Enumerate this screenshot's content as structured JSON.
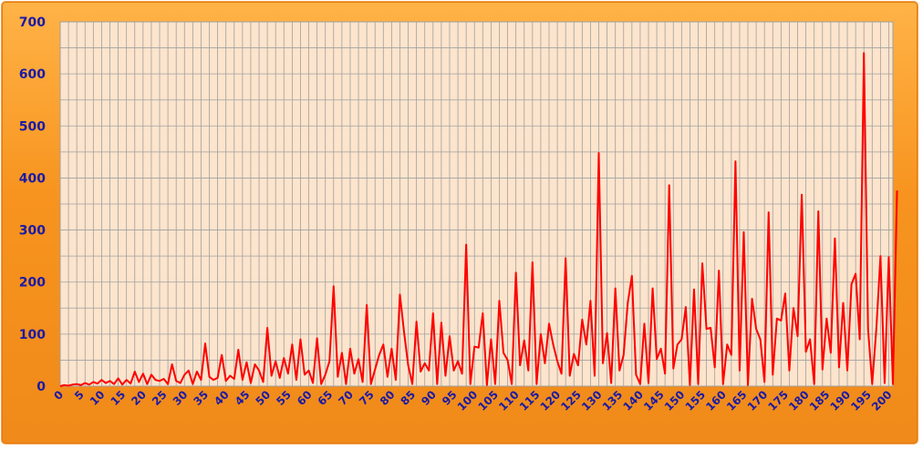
{
  "chart_data": {
    "type": "line",
    "title": "",
    "xlabel": "",
    "ylabel": "",
    "xlim": [
      0,
      201
    ],
    "ylim": [
      0,
      700
    ],
    "grid": true,
    "legend": "none",
    "x_ticks": [
      0,
      5,
      10,
      15,
      20,
      25,
      30,
      35,
      40,
      45,
      50,
      55,
      60,
      65,
      70,
      75,
      80,
      85,
      90,
      95,
      100,
      105,
      110,
      115,
      120,
      125,
      130,
      135,
      140,
      145,
      150,
      155,
      160,
      165,
      170,
      175,
      180,
      185,
      190,
      195,
      200
    ],
    "x_tick_labels": [
      "0",
      "5",
      "10",
      "15",
      "20",
      "25",
      "30",
      "35",
      "40",
      "45",
      "50",
      "55",
      "60",
      "65",
      "70",
      "75",
      "80",
      "85",
      "90",
      "95",
      "100",
      "105",
      "110",
      "115",
      "120",
      "125",
      "130",
      "135",
      "140",
      "145",
      "150",
      "155",
      "160",
      "165",
      "170",
      "175",
      "180",
      "185",
      "190",
      "195",
      "200"
    ],
    "y_ticks": [
      0,
      100,
      200,
      300,
      400,
      500,
      600,
      700
    ],
    "y_tick_labels": [
      "0",
      "100",
      "200",
      "300",
      "400",
      "500",
      "600",
      "700"
    ],
    "colors": {
      "line": "#ff0000",
      "plot_bg": "#fde4cc",
      "grid": "#a0a0a0",
      "tick_text": "#1a1aa6",
      "frame": "#f7931e"
    },
    "series": [
      {
        "values": [
          0,
          2,
          1,
          3,
          4,
          2,
          6,
          3,
          8,
          5,
          12,
          6,
          10,
          4,
          15,
          3,
          12,
          5,
          28,
          8,
          24,
          4,
          22,
          12,
          10,
          14,
          4,
          42,
          10,
          6,
          22,
          30,
          4,
          28,
          12,
          82,
          18,
          12,
          16,
          60,
          10,
          20,
          14,
          70,
          12,
          46,
          6,
          42,
          30,
          8,
          112,
          20,
          48,
          16,
          54,
          24,
          80,
          12,
          90,
          22,
          30,
          6,
          92,
          4,
          22,
          48,
          192,
          18,
          64,
          4,
          72,
          24,
          52,
          8,
          156,
          4,
          32,
          60,
          80,
          18,
          72,
          12,
          176,
          104,
          40,
          4,
          124,
          28,
          44,
          30,
          140,
          4,
          122,
          20,
          96,
          30,
          48,
          24,
          272,
          4,
          76,
          74,
          140,
          2,
          90,
          4,
          164,
          64,
          50,
          4,
          218,
          40,
          88,
          30,
          238,
          4,
          100,
          44,
          120,
          80,
          48,
          24,
          246,
          20,
          62,
          40,
          128,
          80,
          164,
          20,
          448,
          44,
          102,
          6,
          188,
          30,
          60,
          160,
          212,
          22,
          4,
          120,
          6,
          188,
          52,
          72,
          24,
          386,
          34,
          80,
          90,
          152,
          2,
          186,
          4,
          236,
          110,
          112,
          36,
          222,
          4,
          80,
          60,
          432,
          30,
          296,
          2,
          168,
          110,
          90,
          8,
          334,
          22,
          130,
          126,
          178,
          30,
          150,
          96,
          368,
          66,
          90,
          4,
          336,
          32,
          130,
          64,
          284,
          36,
          160,
          30,
          196,
          216,
          90,
          640,
          110,
          4,
          110,
          250,
          6,
          248,
          4,
          376
        ]
      }
    ]
  }
}
